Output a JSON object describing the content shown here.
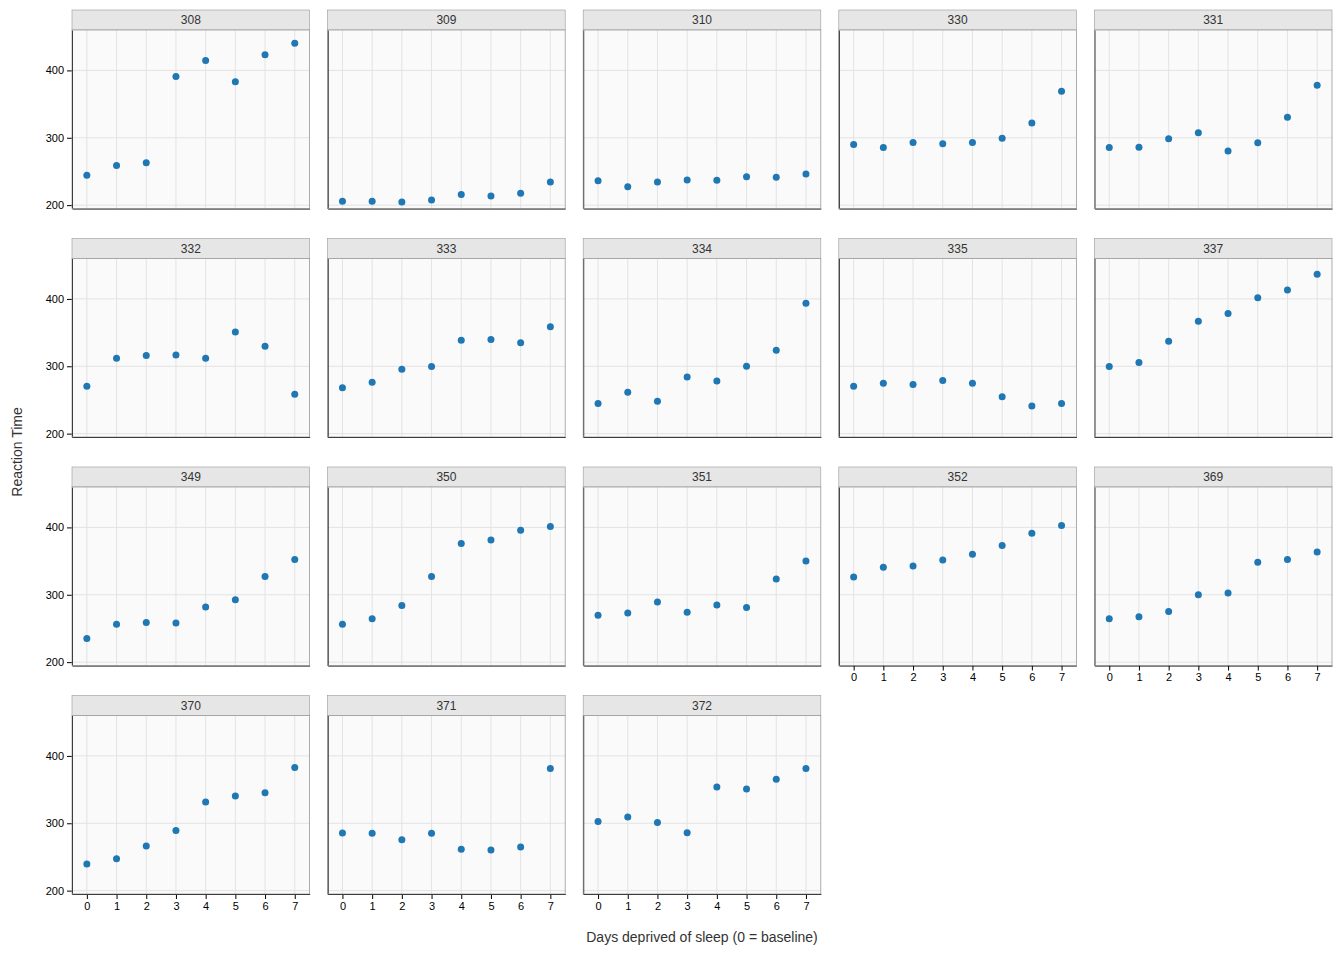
{
  "chart_data": {
    "type": "scatter",
    "xlabel": "Days deprived of sleep (0 = baseline)",
    "ylabel": "Reaction Time",
    "x": [
      0,
      1,
      2,
      3,
      4,
      5,
      6,
      7
    ],
    "xlim": [
      -0.5,
      7.5
    ],
    "ylim": [
      195,
      460
    ],
    "xticks": [
      0,
      1,
      2,
      3,
      4,
      5,
      6,
      7
    ],
    "yticks": [
      200,
      300,
      400
    ],
    "grid": true,
    "series": [
      {
        "name": "308",
        "values": [
          244.2,
          258.7,
          263.0,
          391.0,
          414.7,
          383.2,
          423.2,
          440.5
        ]
      },
      {
        "name": "309",
        "values": [
          205.6,
          205.9,
          204.7,
          207.7,
          215.9,
          213.6,
          217.7,
          234.3
        ]
      },
      {
        "name": "310",
        "values": [
          236.1,
          227.2,
          234.5,
          237.3,
          237.0,
          242.1,
          241.5,
          246.4
        ]
      },
      {
        "name": "330",
        "values": [
          290.1,
          285.6,
          293.0,
          291.0,
          292.9,
          299.4,
          322.1,
          369.1
        ]
      },
      {
        "name": "331",
        "values": [
          285.7,
          286.0,
          298.4,
          307.5,
          280.2,
          292.5,
          330.6,
          378.0
        ]
      },
      {
        "name": "332",
        "values": [
          270.5,
          311.8,
          315.9,
          316.9,
          312.0,
          350.8,
          329.9,
          258.4
        ]
      },
      {
        "name": "333",
        "values": [
          268.0,
          276.1,
          295.4,
          299.6,
          338.8,
          339.6,
          335.1,
          358.7
        ]
      },
      {
        "name": "334",
        "values": [
          244.8,
          261.4,
          248.0,
          284.2,
          278.1,
          300.0,
          323.7,
          393.7
        ]
      },
      {
        "name": "335",
        "values": [
          270.4,
          274.8,
          272.8,
          279.0,
          274.7,
          254.7,
          241.0,
          244.8
        ]
      },
      {
        "name": "337",
        "values": [
          299.7,
          305.7,
          337.2,
          367.0,
          378.4,
          401.7,
          413.1,
          436.8
        ]
      },
      {
        "name": "349",
        "values": [
          234.9,
          256.1,
          258.7,
          258.0,
          281.8,
          292.5,
          327.2,
          352.2
        ]
      },
      {
        "name": "350",
        "values": [
          256.2,
          264.5,
          284.1,
          327.0,
          376.1,
          381.4,
          395.7,
          401.2
        ]
      },
      {
        "name": "351",
        "values": [
          269.5,
          273.1,
          289.2,
          274.1,
          285.0,
          281.0,
          323.4,
          350.0
        ]
      },
      {
        "name": "352",
        "values": [
          326.5,
          340.9,
          342.8,
          351.7,
          360.3,
          373.1,
          391.3,
          402.9
        ]
      },
      {
        "name": "369",
        "values": [
          264.5,
          267.5,
          275.3,
          299.9,
          302.6,
          348.3,
          352.4,
          363.4
        ]
      },
      {
        "name": "370",
        "values": [
          239.7,
          247.5,
          266.3,
          289.3,
          331.7,
          340.5,
          345.5,
          382.8
        ]
      },
      {
        "name": "371",
        "values": [
          285.5,
          285.1,
          275.7,
          285.1,
          261.6,
          260.5,
          264.8,
          381.5
        ]
      },
      {
        "name": "372",
        "values": [
          302.7,
          309.2,
          301.1,
          285.9,
          353.8,
          351.0,
          365.4,
          381.5
        ]
      }
    ]
  }
}
